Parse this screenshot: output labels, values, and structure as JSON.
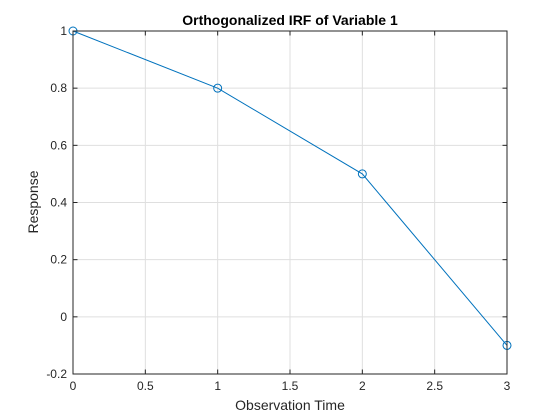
{
  "chart_data": {
    "type": "line",
    "title": "Orthogonalized IRF of Variable 1",
    "xlabel": "Observation Time",
    "ylabel": "Response",
    "xlim": [
      0,
      3
    ],
    "ylim": [
      -0.2,
      1
    ],
    "xticks": [
      0,
      0.5,
      1,
      1.5,
      2,
      2.5,
      3
    ],
    "xtick_labels": [
      "0",
      "0.5",
      "1",
      "1.5",
      "2",
      "2.5",
      "3"
    ],
    "yticks": [
      -0.2,
      0,
      0.2,
      0.4,
      0.6,
      0.8,
      1
    ],
    "ytick_labels": [
      "-0.2",
      "0",
      "0.2",
      "0.4",
      "0.6",
      "0.8",
      "1"
    ],
    "grid": true,
    "marker": "circle",
    "series": [
      {
        "x": [
          0,
          1,
          2,
          3
        ],
        "y": [
          1,
          0.8,
          0.5,
          -0.1
        ],
        "color": "#0072BD"
      }
    ]
  }
}
